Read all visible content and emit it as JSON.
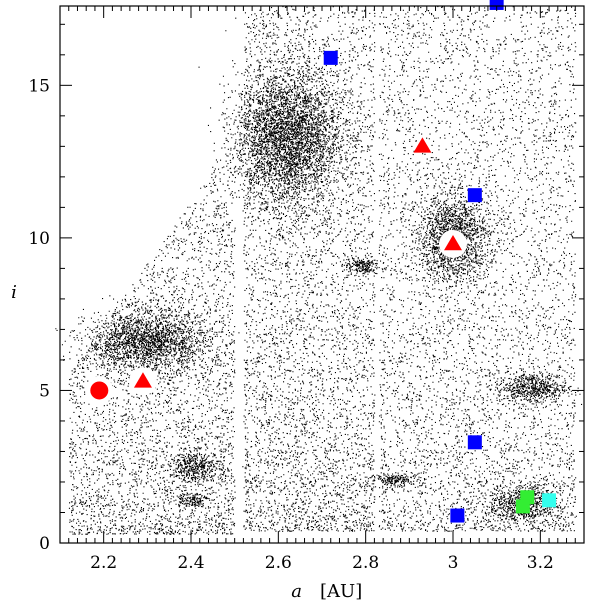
{
  "chart_data": {
    "type": "scatter",
    "title": "",
    "xlabel": "a",
    "xunit": "[AU]",
    "ylabel": "i",
    "xlim": [
      2.1,
      3.3
    ],
    "ylim": [
      0,
      17.6
    ],
    "grid": false,
    "legend": "none",
    "x_ticks": [
      {
        "value": 2.2,
        "label": "2.2"
      },
      {
        "value": 2.4,
        "label": "2.4"
      },
      {
        "value": 2.6,
        "label": "2.6"
      },
      {
        "value": 2.8,
        "label": "2.8"
      },
      {
        "value": 3.0,
        "label": "3"
      },
      {
        "value": 3.2,
        "label": "3.2"
      }
    ],
    "y_ticks": [
      {
        "value": 0,
        "label": "0"
      },
      {
        "value": 5,
        "label": "5"
      },
      {
        "value": 10,
        "label": "10"
      },
      {
        "value": 15,
        "label": "15"
      }
    ],
    "background_population": {
      "description_color": "#000000",
      "regions": [
        {
          "x": [
            2.12,
            2.5
          ],
          "y": [
            0.3,
            13.2
          ]
        },
        {
          "x": [
            2.52,
            2.82
          ],
          "y": [
            0.4,
            17.6
          ]
        },
        {
          "x": [
            2.83,
            3.28
          ],
          "y": [
            0.4,
            17.6
          ]
        }
      ],
      "clusters": [
        {
          "x": 2.3,
          "y": 6.6,
          "sx": 0.07,
          "sy": 0.5
        },
        {
          "x": 2.41,
          "y": 2.5,
          "sx": 0.03,
          "sy": 0.25
        },
        {
          "x": 2.4,
          "y": 1.45,
          "sx": 0.02,
          "sy": 0.12
        },
        {
          "x": 2.62,
          "y": 13.3,
          "sx": 0.06,
          "sy": 1.1
        },
        {
          "x": 2.87,
          "y": 2.1,
          "sx": 0.03,
          "sy": 0.1
        },
        {
          "x": 3.0,
          "y": 10.0,
          "sx": 0.04,
          "sy": 0.7
        },
        {
          "x": 3.16,
          "y": 1.3,
          "sx": 0.04,
          "sy": 0.3
        },
        {
          "x": 3.18,
          "y": 5.1,
          "sx": 0.04,
          "sy": 0.25
        },
        {
          "x": 2.79,
          "y": 9.1,
          "sx": 0.02,
          "sy": 0.15
        }
      ]
    },
    "series": [
      {
        "marker": "circle",
        "color": "#ff0000",
        "halo": true,
        "points": [
          {
            "x": 2.19,
            "y": 5.0
          }
        ]
      },
      {
        "marker": "triangle",
        "color": "#ff0000",
        "points": [
          {
            "x": 2.29,
            "y": 5.3,
            "halo": true
          },
          {
            "x": 2.93,
            "y": 13.0,
            "halo": false
          },
          {
            "x": 3.0,
            "y": 9.8,
            "halo": true
          }
        ]
      },
      {
        "marker": "square",
        "color": "#0000ff",
        "points": [
          {
            "x": 2.72,
            "y": 15.9
          },
          {
            "x": 3.05,
            "y": 11.4
          },
          {
            "x": 3.05,
            "y": 3.3
          },
          {
            "x": 3.01,
            "y": 0.9
          },
          {
            "x": 3.1,
            "y": 17.7,
            "arrow_up": true
          }
        ]
      },
      {
        "marker": "square",
        "color": "#33ee33",
        "points": [
          {
            "x": 3.17,
            "y": 1.5
          },
          {
            "x": 3.16,
            "y": 1.2
          }
        ]
      },
      {
        "marker": "square",
        "color": "#33ffee",
        "points": [
          {
            "x": 3.22,
            "y": 1.4
          }
        ]
      }
    ]
  }
}
